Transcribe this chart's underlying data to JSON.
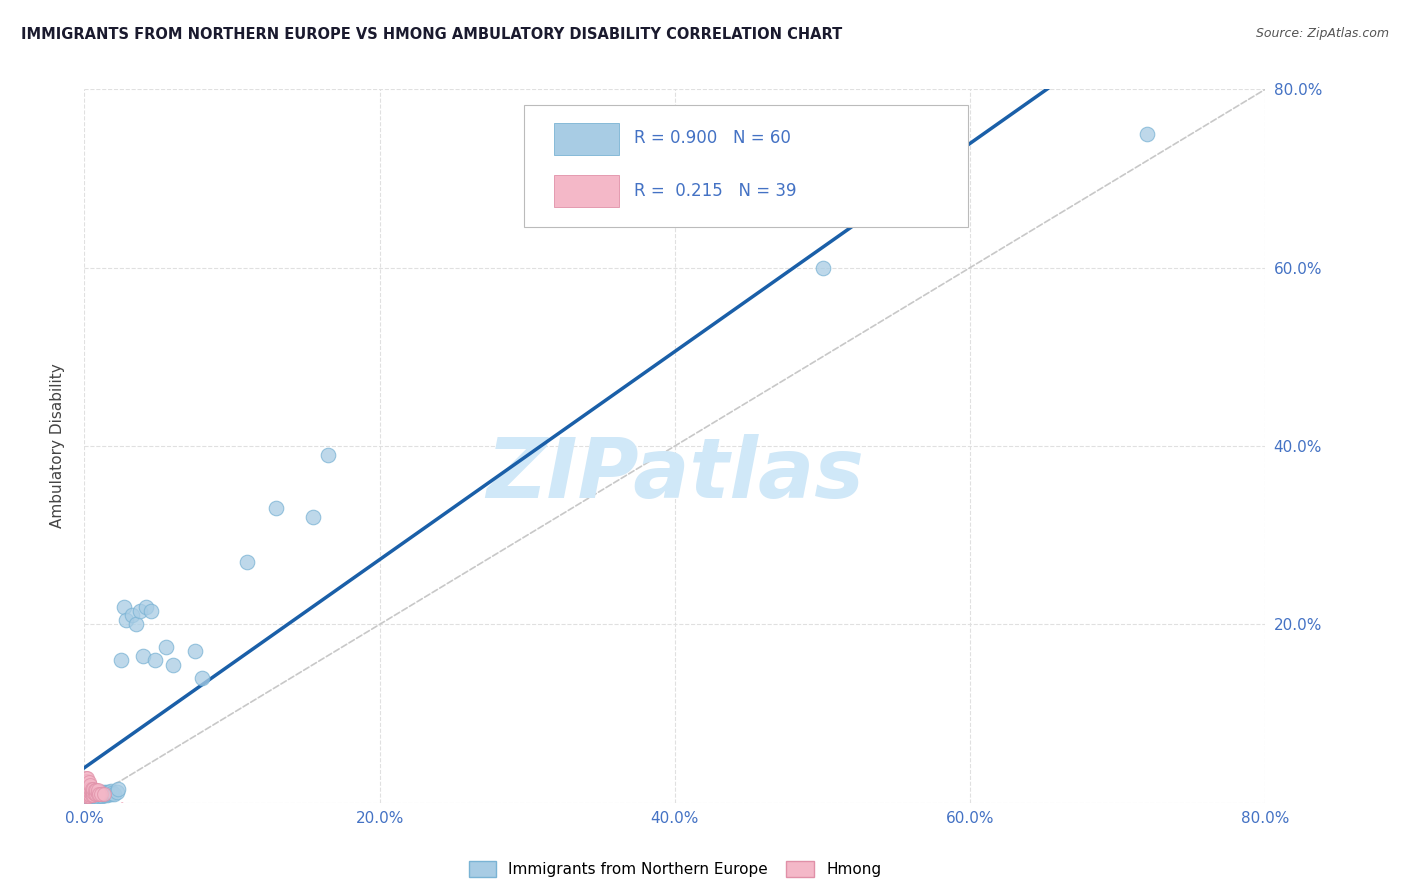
{
  "title": "IMMIGRANTS FROM NORTHERN EUROPE VS HMONG AMBULATORY DISABILITY CORRELATION CHART",
  "source": "Source: ZipAtlas.com",
  "ylabel": "Ambulatory Disability",
  "xlim": [
    0.0,
    0.8
  ],
  "ylim": [
    0.0,
    0.8
  ],
  "xticks": [
    0.0,
    0.2,
    0.4,
    0.6,
    0.8
  ],
  "yticks": [
    0.0,
    0.2,
    0.4,
    0.6,
    0.8
  ],
  "legend_blue_label": "Immigrants from Northern Europe",
  "legend_pink_label": "Hmong",
  "R_blue": 0.9,
  "N_blue": 60,
  "R_pink": 0.215,
  "N_pink": 39,
  "blue_color": "#a8cce4",
  "blue_edge_color": "#7ab3d4",
  "pink_color": "#f4b8c8",
  "pink_edge_color": "#e090a8",
  "blue_line_color": "#1a5fa8",
  "pink_line_color": "#e87090",
  "gray_line_color": "#c8c8c8",
  "watermark": "ZIPatlas",
  "watermark_color": "#d0e8f8",
  "right_axis_color": "#4472c4",
  "title_color": "#1a1a2e",
  "source_color": "#555555",
  "blue_points_x": [
    0.001,
    0.002,
    0.002,
    0.003,
    0.003,
    0.003,
    0.004,
    0.004,
    0.004,
    0.005,
    0.005,
    0.005,
    0.006,
    0.006,
    0.007,
    0.007,
    0.007,
    0.008,
    0.008,
    0.009,
    0.009,
    0.01,
    0.01,
    0.011,
    0.011,
    0.012,
    0.012,
    0.013,
    0.013,
    0.014,
    0.015,
    0.015,
    0.016,
    0.017,
    0.018,
    0.018,
    0.019,
    0.02,
    0.022,
    0.023,
    0.025,
    0.027,
    0.028,
    0.032,
    0.035,
    0.038,
    0.04,
    0.042,
    0.045,
    0.048,
    0.055,
    0.06,
    0.075,
    0.08,
    0.11,
    0.13,
    0.155,
    0.165,
    0.5,
    0.72
  ],
  "blue_points_y": [
    0.004,
    0.006,
    0.008,
    0.005,
    0.007,
    0.009,
    0.006,
    0.008,
    0.01,
    0.005,
    0.008,
    0.01,
    0.006,
    0.009,
    0.006,
    0.008,
    0.01,
    0.007,
    0.01,
    0.007,
    0.01,
    0.008,
    0.011,
    0.009,
    0.012,
    0.008,
    0.011,
    0.009,
    0.012,
    0.01,
    0.009,
    0.012,
    0.01,
    0.012,
    0.01,
    0.013,
    0.011,
    0.01,
    0.012,
    0.015,
    0.16,
    0.22,
    0.205,
    0.21,
    0.2,
    0.215,
    0.165,
    0.22,
    0.215,
    0.16,
    0.175,
    0.155,
    0.17,
    0.14,
    0.27,
    0.33,
    0.32,
    0.39,
    0.6,
    0.75
  ],
  "pink_points_x": [
    0.001,
    0.001,
    0.001,
    0.001,
    0.001,
    0.001,
    0.001,
    0.001,
    0.002,
    0.002,
    0.002,
    0.002,
    0.002,
    0.002,
    0.002,
    0.003,
    0.003,
    0.003,
    0.003,
    0.003,
    0.004,
    0.004,
    0.004,
    0.004,
    0.005,
    0.005,
    0.005,
    0.006,
    0.006,
    0.006,
    0.007,
    0.007,
    0.008,
    0.008,
    0.009,
    0.009,
    0.01,
    0.011,
    0.013
  ],
  "pink_points_y": [
    0.008,
    0.01,
    0.012,
    0.015,
    0.018,
    0.02,
    0.025,
    0.028,
    0.008,
    0.01,
    0.013,
    0.016,
    0.02,
    0.024,
    0.028,
    0.008,
    0.01,
    0.013,
    0.018,
    0.023,
    0.009,
    0.012,
    0.016,
    0.02,
    0.009,
    0.012,
    0.016,
    0.009,
    0.012,
    0.016,
    0.01,
    0.014,
    0.01,
    0.014,
    0.01,
    0.014,
    0.01,
    0.01,
    0.01
  ]
}
